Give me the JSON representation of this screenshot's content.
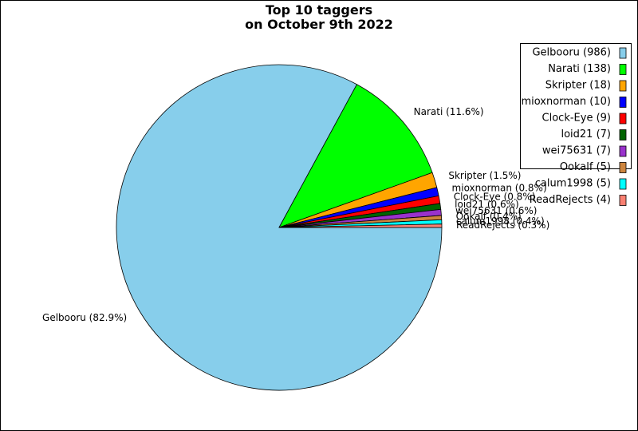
{
  "chart_data": {
    "type": "pie",
    "title": "Top 10 taggers",
    "subtitle": "on October 9th 2022",
    "legend_position": "top-right",
    "slices": [
      {
        "name": "Gelbooru",
        "value": 986,
        "percent_label": "Gelbooru (82.9%)",
        "legend_label": "Gelbooru (986)",
        "color": "#87ceeb"
      },
      {
        "name": "Narati",
        "value": 138,
        "percent_label": "Narati (11.6%)",
        "legend_label": "Narati (138)",
        "color": "#00ff00"
      },
      {
        "name": "Skripter",
        "value": 18,
        "percent_label": "Skripter (1.5%)",
        "legend_label": "Skripter (18)",
        "color": "#ffa500"
      },
      {
        "name": "mioxnorman",
        "value": 10,
        "percent_label": "mioxnorman (0.8%)",
        "legend_label": "mioxnorman (10)",
        "color": "#0000ff"
      },
      {
        "name": "Clock-Eye",
        "value": 9,
        "percent_label": "Clock-Eye (0.8%)",
        "legend_label": "Clock-Eye (9)",
        "color": "#ff0000"
      },
      {
        "name": "loid21",
        "value": 7,
        "percent_label": "loid21 (0.6%)",
        "legend_label": "loid21 (7)",
        "color": "#006400"
      },
      {
        "name": "wei75631",
        "value": 7,
        "percent_label": "wei75631 (0.6%)",
        "legend_label": "wei75631 (7)",
        "color": "#9932cc"
      },
      {
        "name": "Ookalf",
        "value": 5,
        "percent_label": "Ookalf (0.4%)",
        "legend_label": "Ookalf (5)",
        "color": "#cd853f"
      },
      {
        "name": "calum1998",
        "value": 5,
        "percent_label": "calum1998 (0.4%)",
        "legend_label": "calum1998 (5)",
        "color": "#00ffff"
      },
      {
        "name": "ReadRejects",
        "value": 4,
        "percent_label": "ReadRejects (0.3%)",
        "legend_label": "ReadRejects (4)",
        "color": "#fa8072"
      }
    ]
  }
}
